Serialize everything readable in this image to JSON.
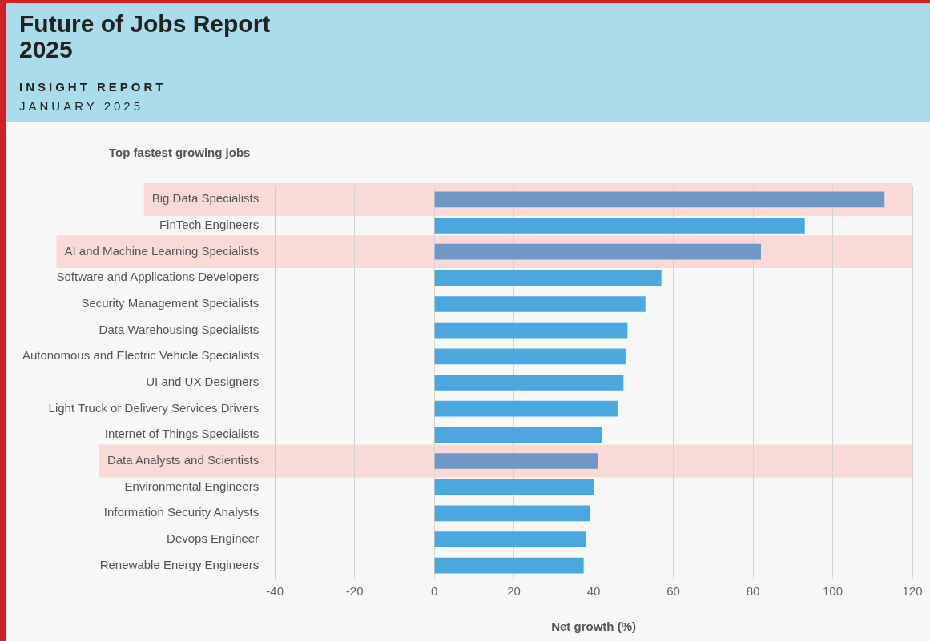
{
  "chart_data": {
    "type": "bar",
    "orientation": "horizontal",
    "title": "Future of Jobs Report 2025",
    "subtitle": "INSIGHT REPORT",
    "annotations": [
      "JANUARY 2025"
    ],
    "ylabel": "Top fastest growing jobs",
    "xlabel": "Net growth (%)",
    "categories": [
      "Big Data Specialists",
      "FinTech Engineers",
      "AI and Machine Learning Specialists",
      "Software and Applications Developers",
      "Security Management Specialists",
      "Data Warehousing Specialists",
      "Autonomous and Electric Vehicle Specialists",
      "UI and UX Designers",
      "Light Truck or Delivery Services Drivers",
      "Internet of Things Specialists",
      "Data Analysts and Scientists",
      "Environmental Engineers",
      "Information Security Analysts",
      "Devops Engineer",
      "Renewable Energy Engineers"
    ],
    "values": [
      113,
      93,
      82,
      57,
      53,
      48.5,
      48,
      47.5,
      46,
      42,
      41,
      40,
      39,
      38,
      37.5
    ],
    "colors": [
      "#7098c6",
      "#4aa8de",
      "#7098c6",
      "#4aa8de",
      "#4aa8de",
      "#4aa8de",
      "#4aa8de",
      "#4aa8de",
      "#4aa8de",
      "#4aa8de",
      "#7098c6",
      "#4aa8de",
      "#4aa8de",
      "#4aa8de",
      "#4aa8de"
    ],
    "bands": [
      {
        "axis": "y",
        "from": "Big Data Specialists",
        "to": "Big Data Specialists",
        "color": "#f9dad6"
      },
      {
        "axis": "y",
        "from": "AI and Machine Learning Specialists",
        "to": "AI and Machine Learning Specialists",
        "color": "#f9dad6"
      },
      {
        "axis": "y",
        "from": "Data Analysts and Scientists",
        "to": "Data Analysts and Scientists",
        "color": "#f9dad6"
      }
    ],
    "xlim": [
      -40,
      120
    ],
    "xticks": [
      -40,
      -20,
      0,
      20,
      40,
      60,
      80,
      100,
      120
    ],
    "grid": "x",
    "legend": false
  }
}
